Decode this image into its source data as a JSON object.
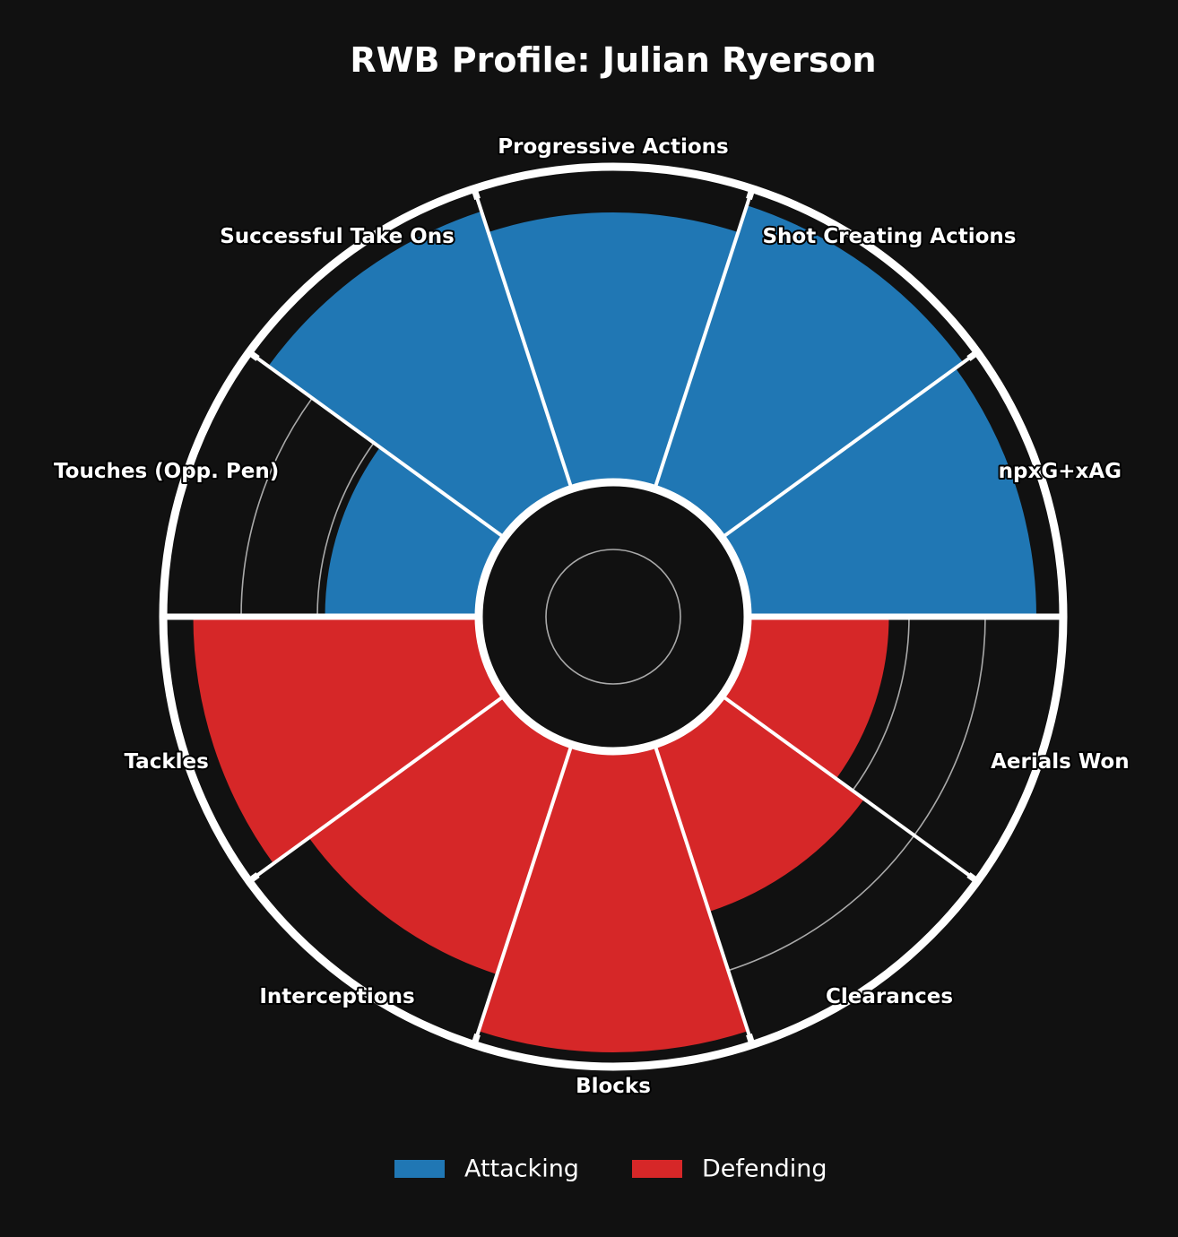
{
  "chart_data": {
    "type": "polar-bar",
    "title": "RWB Profile: Julian Ryerson",
    "categories": [
      "npxG+xAG",
      "Shot Creating Actions",
      "Progressive Actions",
      "Successful Take Ons",
      "Touches (Opp. Pen)",
      "Tackles",
      "Interceptions",
      "Blocks",
      "Clearances",
      "Aerials Won"
    ],
    "groups": [
      "Attacking",
      "Attacking",
      "Attacking",
      "Attacking",
      "Attacking",
      "Defending",
      "Defending",
      "Defending",
      "Defending",
      "Defending"
    ],
    "values": [
      92,
      95,
      86,
      93,
      49,
      91,
      77,
      96,
      56,
      45
    ],
    "ylim": [
      0,
      100
    ],
    "grid_rings": [
      20,
      40,
      60,
      80
    ],
    "series": [
      {
        "name": "Attacking",
        "color": "#2077b4"
      },
      {
        "name": "Defending",
        "color": "#d62728"
      }
    ],
    "legend_placement": "bottom-center",
    "background": "#111111"
  }
}
